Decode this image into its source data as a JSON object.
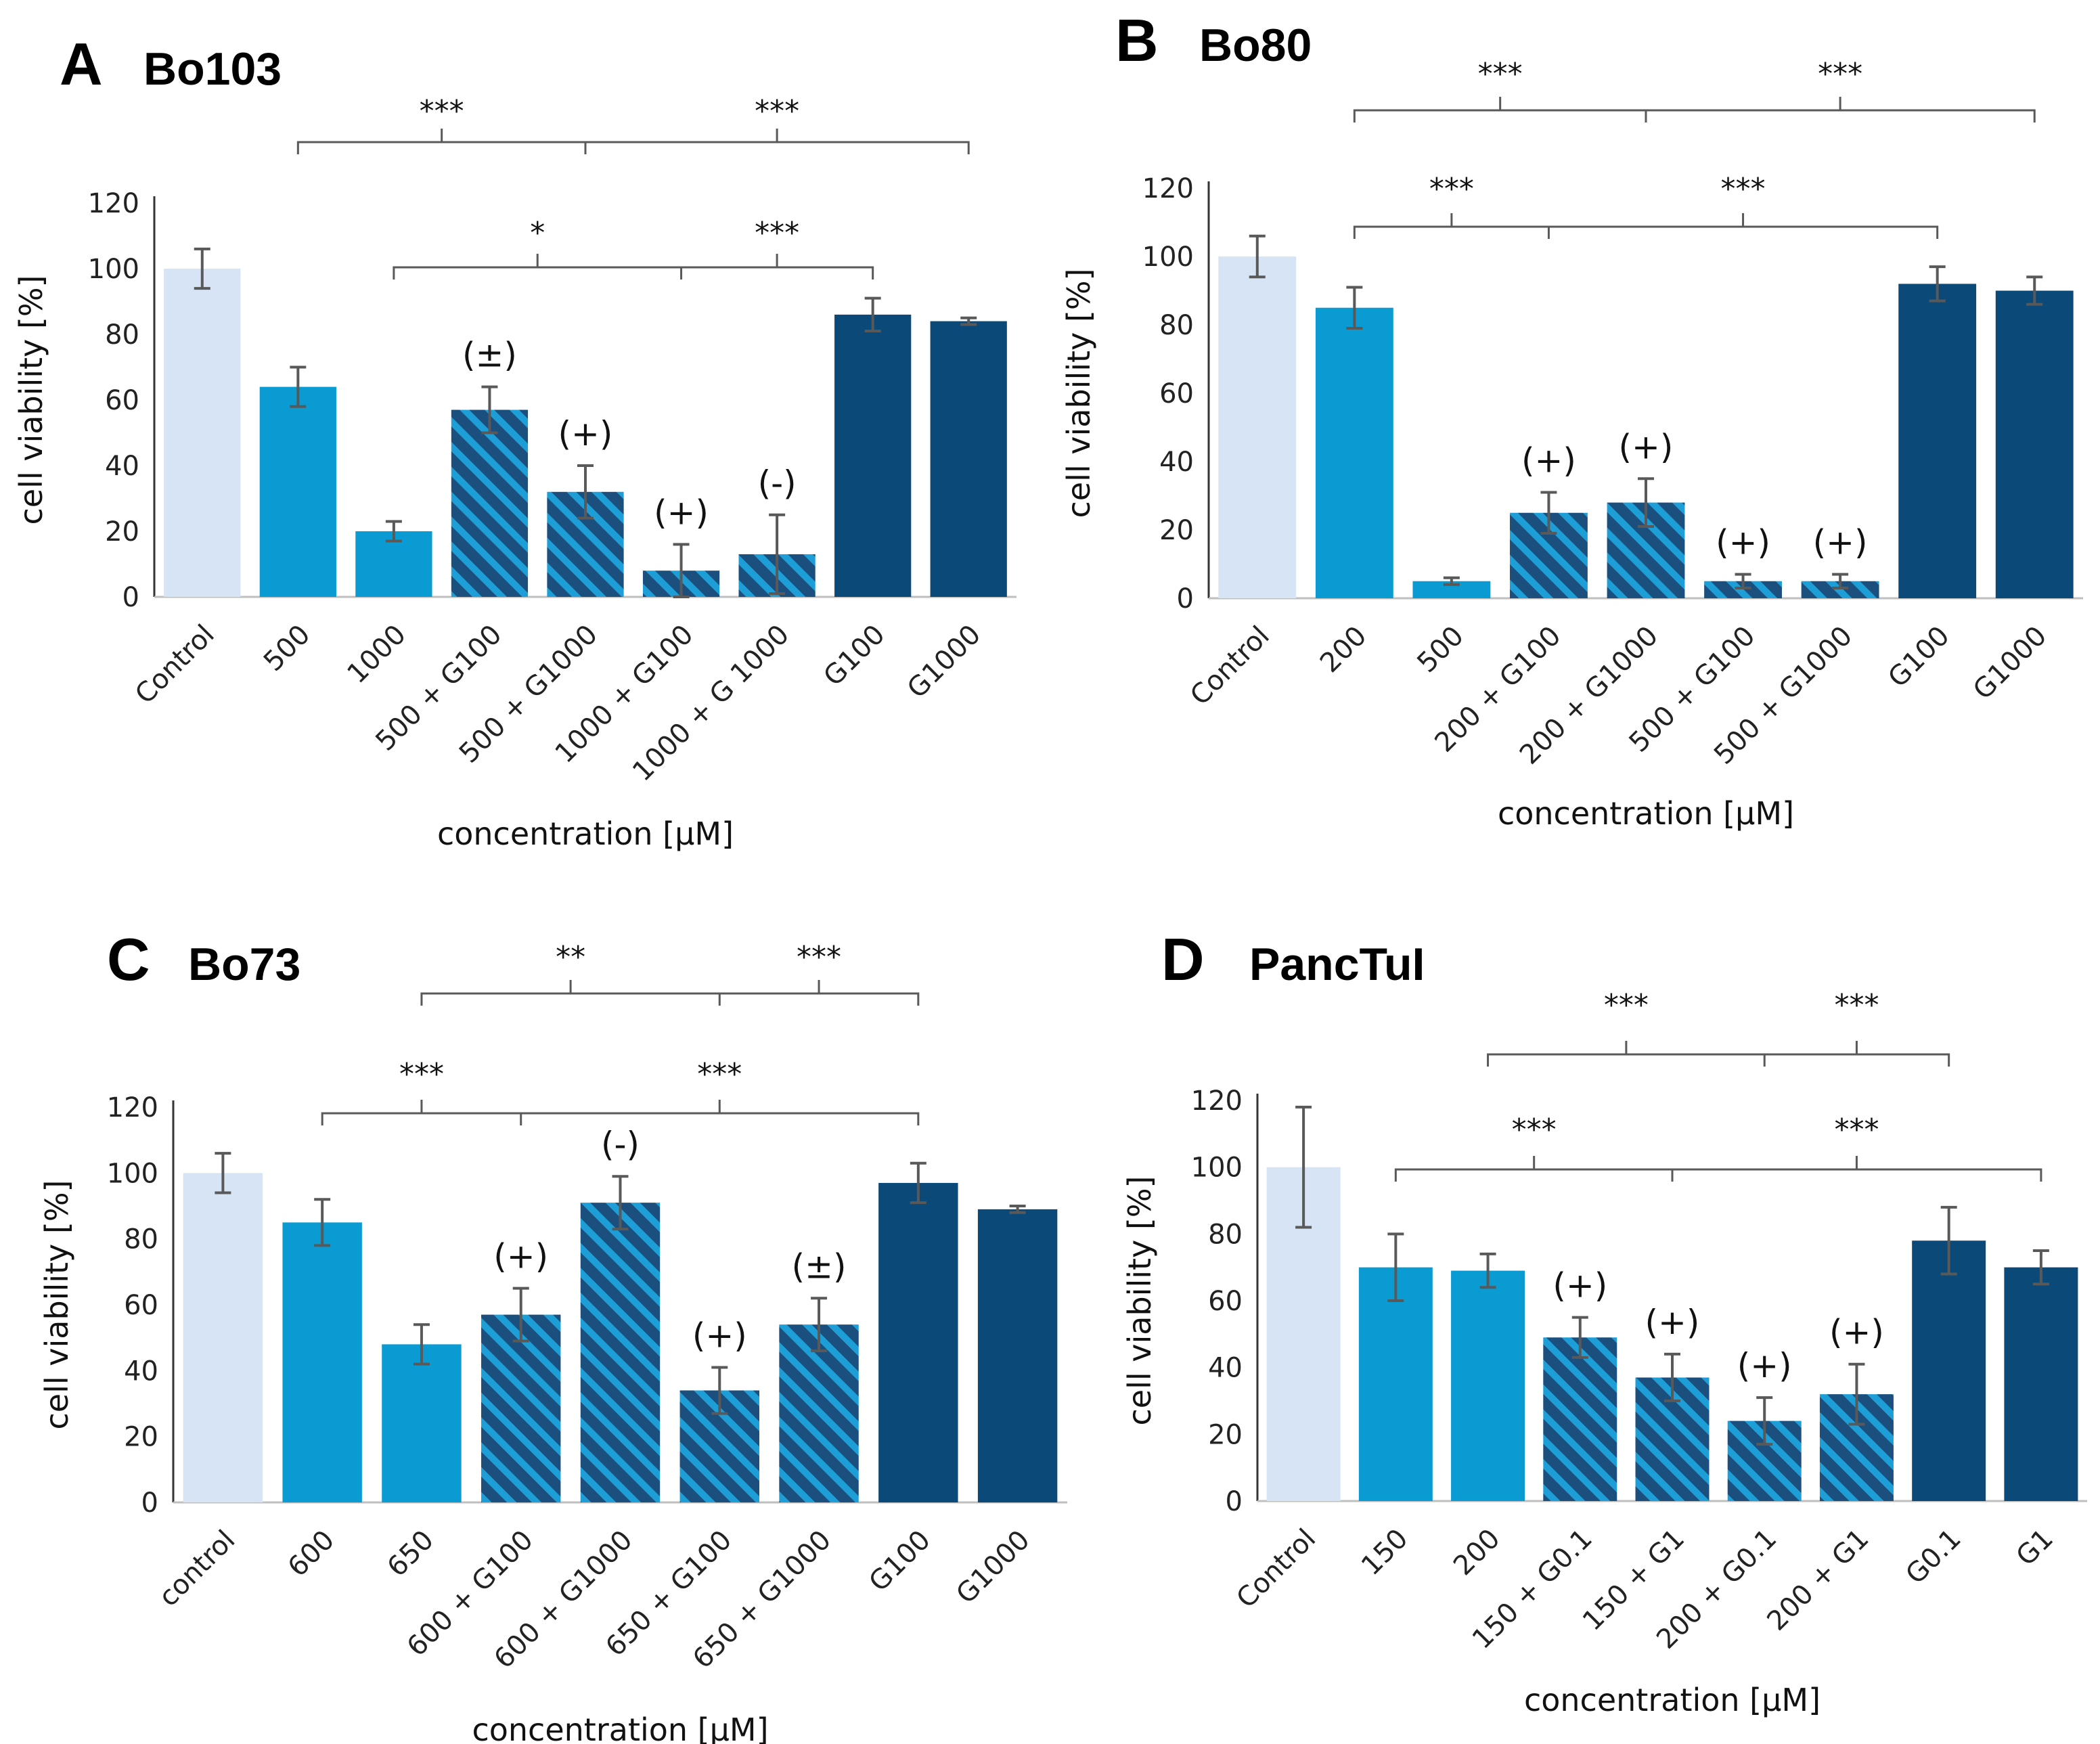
{
  "chart_data": [
    {
      "type": "bar",
      "letter": "A",
      "title": "Bo103",
      "xlabel": "concentration [µM]",
      "ylabel": "cell viability [%]",
      "ylim": [
        0,
        120
      ],
      "yticks": [
        "0",
        "20",
        "40",
        "60",
        "80",
        "100",
        "120"
      ],
      "categories": [
        "Control",
        "500",
        "1000",
        "500 + G100",
        "500 + G1000",
        "1000 + G100",
        "1000 + G 1000",
        "G100",
        "G1000"
      ],
      "values": [
        100,
        64,
        20,
        57,
        32,
        8,
        13,
        86,
        84
      ],
      "errors": [
        6,
        6,
        3,
        7,
        8,
        8,
        12,
        5,
        1
      ],
      "bar_styles": [
        "control",
        "drug",
        "drug",
        "combo",
        "combo",
        "combo",
        "combo",
        "g",
        "g"
      ],
      "annotations": [
        "",
        "",
        "",
        "(±)",
        "(+)",
        "(+)",
        "(-)",
        "",
        ""
      ],
      "brackets": [
        {
          "from": 1,
          "to": 8,
          "mid": 4,
          "level": "upper",
          "labels": [
            "***",
            "***"
          ]
        },
        {
          "from": 2,
          "to": 7,
          "mid": 5,
          "level": "lower",
          "labels": [
            "*",
            "***"
          ]
        }
      ]
    },
    {
      "type": "bar",
      "letter": "B",
      "title": "Bo80",
      "xlabel": "concentration [µM]",
      "ylabel": "cell viability [%]",
      "ylim": [
        0,
        120
      ],
      "yticks": [
        "0",
        "20",
        "40",
        "60",
        "80",
        "100",
        "120"
      ],
      "categories": [
        "Control",
        "200",
        "500",
        "200 + G100",
        "200 + G1000",
        "500 + G100",
        "500 + G1000",
        "G100",
        "G1000"
      ],
      "values": [
        100,
        85,
        5,
        25,
        28,
        5,
        5,
        92,
        90
      ],
      "errors": [
        6,
        6,
        1,
        6,
        7,
        2,
        2,
        5,
        4
      ],
      "bar_styles": [
        "control",
        "drug",
        "drug",
        "combo",
        "combo",
        "combo",
        "combo",
        "g",
        "g"
      ],
      "annotations": [
        "",
        "",
        "",
        "(+)",
        "(+)",
        "(+)",
        "(+)",
        "",
        ""
      ],
      "brackets": [
        {
          "from": 1,
          "to": 8,
          "mid": 4,
          "level": "upper",
          "labels": [
            "***",
            "***"
          ]
        },
        {
          "from": 1,
          "to": 7,
          "mid": 3,
          "level": "lower",
          "labels": [
            "***",
            "***"
          ]
        }
      ]
    },
    {
      "type": "bar",
      "letter": "C",
      "title": "Bo73",
      "xlabel": "concentration [µM]",
      "ylabel": "cell viability [%]",
      "ylim": [
        0,
        120
      ],
      "yticks": [
        "0",
        "20",
        "40",
        "60",
        "80",
        "100",
        "120"
      ],
      "categories": [
        "control",
        "600",
        "650",
        "600 + G100",
        "600 + G1000",
        "650 + G100",
        "650 + G1000",
        "G100",
        "G1000"
      ],
      "values": [
        100,
        85,
        48,
        57,
        91,
        34,
        54,
        97,
        89
      ],
      "errors": [
        6,
        7,
        6,
        8,
        8,
        7,
        8,
        6,
        1
      ],
      "bar_styles": [
        "control",
        "drug",
        "drug",
        "combo",
        "combo",
        "combo",
        "combo",
        "g",
        "g"
      ],
      "annotations": [
        "",
        "",
        "",
        "(+)",
        "(-)",
        "(+)",
        "(±)",
        "",
        ""
      ],
      "brackets": [
        {
          "from": 2,
          "to": 7,
          "mid": 5,
          "level": "upper",
          "labels": [
            "**",
            "***"
          ]
        },
        {
          "from": 1,
          "to": 7,
          "mid": 3,
          "level": "lower",
          "labels": [
            "***",
            "***"
          ]
        }
      ]
    },
    {
      "type": "bar",
      "letter": "D",
      "title": "PancTuI",
      "xlabel": "concentration [µM]",
      "ylabel": "cell viability [%]",
      "ylim": [
        0,
        120
      ],
      "yticks": [
        "0",
        "20",
        "40",
        "60",
        "80",
        "100",
        "120"
      ],
      "categories": [
        "Control",
        "150",
        "200",
        "150 + G0.1",
        "150 + G1",
        "200 + G0.1",
        "200 + G1",
        "G0.1",
        "G1"
      ],
      "values": [
        100,
        70,
        69,
        49,
        37,
        24,
        32,
        78,
        70
      ],
      "errors": [
        18,
        10,
        5,
        6,
        7,
        7,
        9,
        10,
        5
      ],
      "bar_styles": [
        "control",
        "drug",
        "drug",
        "combo",
        "combo",
        "combo",
        "combo",
        "g",
        "g"
      ],
      "annotations": [
        "",
        "",
        "",
        "(+)",
        "(+)",
        "(+)",
        "(+)",
        "",
        ""
      ],
      "brackets": [
        {
          "from": 2,
          "to": 7,
          "mid": 5,
          "level": "upper",
          "labels": [
            "***",
            "***"
          ]
        },
        {
          "from": 1,
          "to": 8,
          "mid": 4,
          "level": "lower",
          "labels": [
            "***",
            "***"
          ]
        }
      ]
    }
  ],
  "colors": {
    "control": "#d6e4f5",
    "drug": "#0a9bd3",
    "combo_base": "#1b4f7e",
    "combo_stripe": "#1e9ed6",
    "g": "#0b4a78",
    "error": "#595959",
    "axis": "#333333",
    "bracket": "#595959"
  }
}
